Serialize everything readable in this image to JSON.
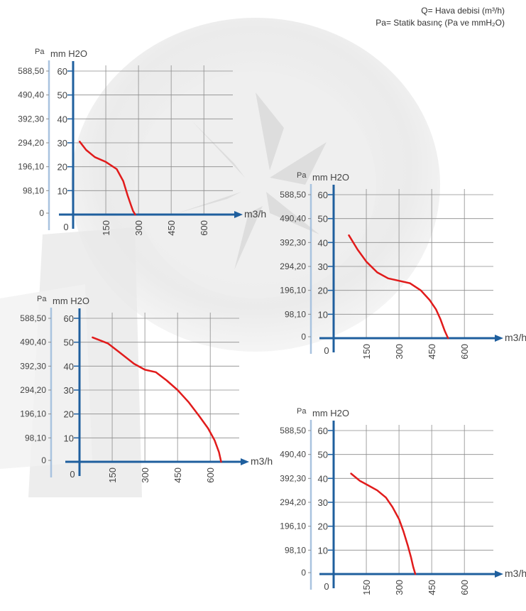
{
  "legend": {
    "line1": "Q= Hava debisi (m³/h)",
    "line2": "Pa= Statik basınç  (Pa ve mmH₂O)"
  },
  "colors": {
    "axis": "#1f5f9e",
    "pa_axis": "#a9c3df",
    "grid": "#8c8c8c",
    "curve": "#e11b1b",
    "text": "#444444"
  },
  "chart_data": [
    {
      "type": "line",
      "unit_pa": "Pa",
      "unit_mm": "mm H2O",
      "x_unit": "m3/h",
      "x_ticks": [
        "150",
        "300",
        "450",
        "600"
      ],
      "x_zero": "0",
      "y_ticks": [
        "10",
        "20",
        "30",
        "40",
        "50",
        "60"
      ],
      "pa_ticks": [
        "0",
        "98,10",
        "196,10",
        "294,20",
        "392,30",
        "490,40",
        "588,50"
      ],
      "xlim": [
        0,
        750
      ],
      "ylim": [
        0,
        60
      ],
      "series": [
        {
          "x": [
            30,
            60,
            100,
            150,
            200,
            230,
            250,
            265,
            275,
            285
          ],
          "y": [
            30.5,
            27,
            24,
            22,
            19,
            14,
            8,
            4,
            1.5,
            0
          ]
        }
      ]
    },
    {
      "type": "line",
      "unit_pa": "Pa",
      "unit_mm": "mm H2O",
      "x_unit": "m3/h",
      "x_ticks": [
        "150",
        "300",
        "450",
        "600"
      ],
      "x_zero": "0",
      "y_ticks": [
        "10",
        "20",
        "30",
        "40",
        "50",
        "60"
      ],
      "pa_ticks": [
        "0",
        "98,10",
        "196,10",
        "294,20",
        "392,30",
        "490,40",
        "588,50"
      ],
      "xlim": [
        0,
        750
      ],
      "ylim": [
        0,
        60
      ],
      "series": [
        {
          "x": [
            70,
            110,
            150,
            200,
            250,
            300,
            350,
            400,
            440,
            470,
            490,
            510,
            525
          ],
          "y": [
            43,
            37,
            32,
            27.5,
            25,
            24,
            23,
            20,
            16,
            12,
            8,
            3,
            0
          ]
        }
      ]
    },
    {
      "type": "line",
      "unit_pa": "Pa",
      "unit_mm": "mm H2O",
      "x_unit": "m3/h",
      "x_ticks": [
        "150",
        "300",
        "450",
        "600"
      ],
      "x_zero": "0",
      "y_ticks": [
        "10",
        "20",
        "30",
        "40",
        "50",
        "60"
      ],
      "pa_ticks": [
        "0",
        "98,10",
        "196,10",
        "294,20",
        "392,30",
        "490,40",
        "588,50"
      ],
      "xlim": [
        0,
        750
      ],
      "ylim": [
        0,
        60
      ],
      "series": [
        {
          "x": [
            60,
            130,
            180,
            250,
            300,
            350,
            400,
            450,
            500,
            550,
            590,
            620,
            640,
            650
          ],
          "y": [
            52,
            49.5,
            46,
            41,
            38.5,
            37.5,
            34,
            30,
            25,
            19,
            14,
            9,
            4,
            0
          ]
        }
      ]
    },
    {
      "type": "line",
      "unit_pa": "Pa",
      "unit_mm": "mm H2O",
      "x_unit": "m3/h",
      "x_ticks": [
        "150",
        "300",
        "450",
        "600"
      ],
      "x_zero": "0",
      "y_ticks": [
        "10",
        "20",
        "30",
        "40",
        "50",
        "60"
      ],
      "pa_ticks": [
        "0",
        "98,10",
        "196,10",
        "294,20",
        "392,30",
        "490,40",
        "588,50"
      ],
      "xlim": [
        0,
        750
      ],
      "ylim": [
        0,
        60
      ],
      "series": [
        {
          "x": [
            80,
            120,
            160,
            200,
            240,
            270,
            300,
            320,
            340,
            355,
            365,
            375
          ],
          "y": [
            42,
            39,
            37,
            35,
            32,
            28,
            23,
            18,
            12,
            7,
            3,
            0
          ]
        }
      ]
    }
  ]
}
